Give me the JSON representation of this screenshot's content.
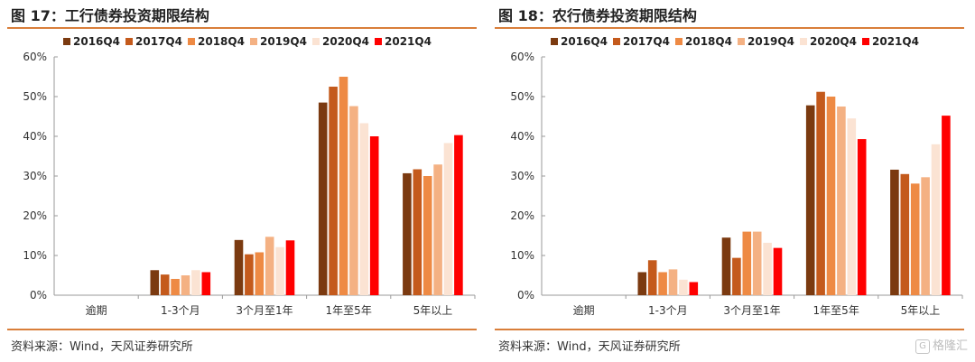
{
  "source_text": "资料来源：Wind，天风证券研究所",
  "watermark": {
    "icon": "G",
    "text": "格隆汇"
  },
  "chart_data": [
    {
      "type": "bar",
      "title": "图 17：工行债券投资期限结构",
      "categories": [
        "逾期",
        "1-3个月",
        "3个月至1年",
        "1年至5年",
        "5年以上"
      ],
      "yticks": [
        "0%",
        "10%",
        "20%",
        "30%",
        "40%",
        "50%",
        "60%"
      ],
      "ylim": [
        0,
        60
      ],
      "legend_position": "top",
      "series": [
        {
          "name": "2016Q4",
          "color": "#7b3a10",
          "values": [
            0,
            6.3,
            13.9,
            48.5,
            30.7
          ]
        },
        {
          "name": "2017Q4",
          "color": "#c45a1c",
          "values": [
            0,
            5.2,
            10.3,
            52.5,
            31.7
          ]
        },
        {
          "name": "2018Q4",
          "color": "#ee8a44",
          "values": [
            0,
            4.1,
            10.8,
            55.0,
            30.0
          ]
        },
        {
          "name": "2019Q4",
          "color": "#f4b183",
          "values": [
            0,
            5.0,
            14.7,
            47.6,
            32.9
          ]
        },
        {
          "name": "2020Q4",
          "color": "#fbe3d3",
          "values": [
            0,
            6.3,
            12.1,
            43.3,
            38.3
          ]
        },
        {
          "name": "2021Q4",
          "color": "#ff0000",
          "values": [
            0,
            5.8,
            13.8,
            40.0,
            40.3
          ]
        }
      ]
    },
    {
      "type": "bar",
      "title": "图 18：农行债券投资期限结构",
      "categories": [
        "逾期",
        "1-3个月",
        "3个月至1年",
        "1年至5年",
        "5年以上"
      ],
      "yticks": [
        "0%",
        "10%",
        "20%",
        "30%",
        "40%",
        "50%",
        "60%"
      ],
      "ylim": [
        0,
        60
      ],
      "legend_position": "top",
      "series": [
        {
          "name": "2016Q4",
          "color": "#7b3a10",
          "values": [
            0,
            5.8,
            14.5,
            47.8,
            31.6
          ]
        },
        {
          "name": "2017Q4",
          "color": "#c45a1c",
          "values": [
            0,
            8.8,
            9.4,
            51.2,
            30.5
          ]
        },
        {
          "name": "2018Q4",
          "color": "#ee8a44",
          "values": [
            0,
            5.8,
            16.0,
            50.0,
            28.1
          ]
        },
        {
          "name": "2019Q4",
          "color": "#f4b183",
          "values": [
            0,
            6.5,
            16.0,
            47.5,
            29.7
          ]
        },
        {
          "name": "2020Q4",
          "color": "#fbe3d3",
          "values": [
            0,
            3.9,
            13.2,
            44.5,
            38.0
          ]
        },
        {
          "name": "2021Q4",
          "color": "#ff0000",
          "values": [
            0,
            3.3,
            11.9,
            39.3,
            45.2
          ]
        }
      ]
    }
  ]
}
